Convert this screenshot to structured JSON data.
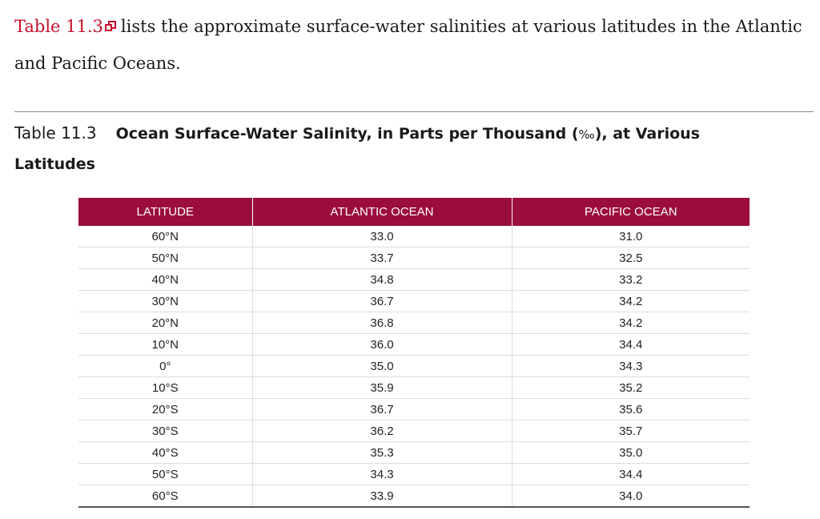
{
  "intro": {
    "link_text": "Table 11.3",
    "link_icon": "external-link-icon",
    "text": "lists the approximate surface-water salinities at various latitudes in the Atlantic and Pacific Oceans."
  },
  "caption": {
    "number": "Table 11.3",
    "title": "Ocean Surface-Water Salinity, in Parts per Thousand (",
    "symbol": "‰",
    "title_end": "), at Various Latitudes"
  },
  "table": {
    "header_color": "#9b0c3f",
    "headers": [
      "LATITUDE",
      "ATLANTIC OCEAN",
      "PACIFIC OCEAN"
    ],
    "rows": [
      [
        "60°N",
        "33.0",
        "31.0"
      ],
      [
        "50°N",
        "33.7",
        "32.5"
      ],
      [
        "40°N",
        "34.8",
        "33.2"
      ],
      [
        "30°N",
        "36.7",
        "34.2"
      ],
      [
        "20°N",
        "36.8",
        "34.2"
      ],
      [
        "10°N",
        "36.0",
        "34.4"
      ],
      [
        "0°",
        "35.0",
        "34.3"
      ],
      [
        "10°S",
        "35.9",
        "35.2"
      ],
      [
        "20°S",
        "36.7",
        "35.6"
      ],
      [
        "30°S",
        "36.2",
        "35.7"
      ],
      [
        "40°S",
        "35.3",
        "35.0"
      ],
      [
        "50°S",
        "34.3",
        "34.4"
      ],
      [
        "60°S",
        "33.9",
        "34.0"
      ]
    ]
  }
}
